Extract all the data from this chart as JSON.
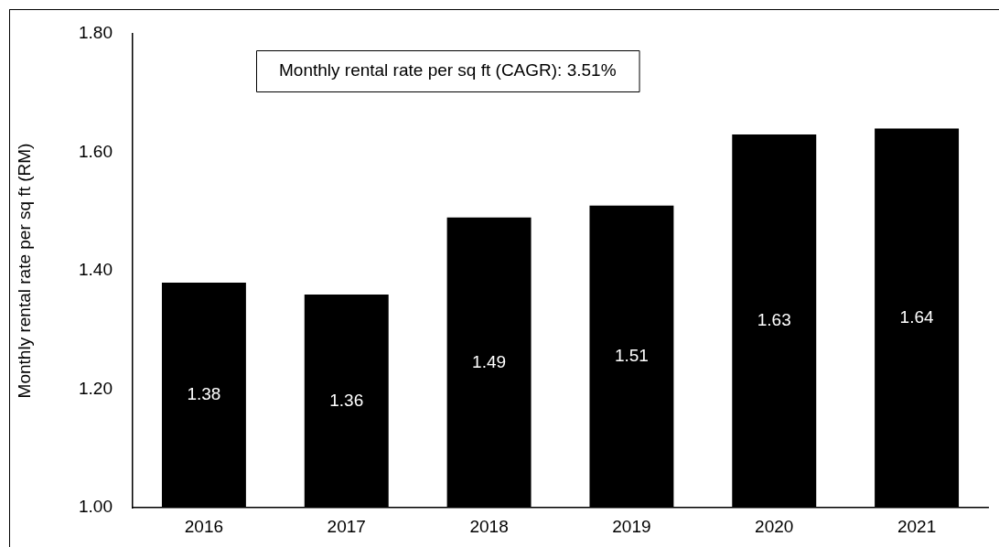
{
  "chart_data": {
    "type": "bar",
    "ylabel": "Monthly rental rate per sq ft (RM)",
    "categories": [
      "2016",
      "2017",
      "2018",
      "2019",
      "2020",
      "2021"
    ],
    "values": [
      1.38,
      1.36,
      1.49,
      1.51,
      1.63,
      1.64
    ],
    "color": "#000000",
    "ylim": [
      1,
      1.8
    ],
    "yticks": [
      {
        "value": 1,
        "label": "1.00"
      },
      {
        "value": 1.2,
        "label": "1.20"
      },
      {
        "value": 1.4,
        "label": "1.40"
      },
      {
        "value": 1.6,
        "label": "1.60"
      },
      {
        "value": 1.8,
        "label": "1.80"
      }
    ],
    "grid": false,
    "legend": false,
    "data_labels": true,
    "annotations": [
      "Monthly rental rate per sq ft (CAGR): 3.51%"
    ]
  }
}
